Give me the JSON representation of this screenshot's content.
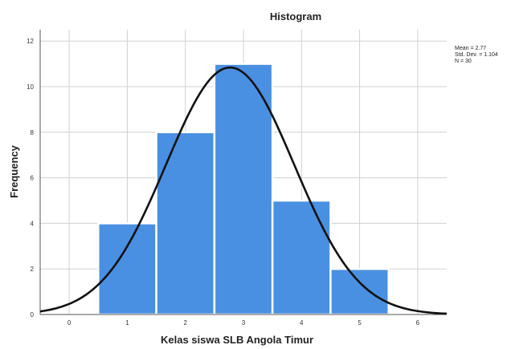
{
  "chart_data": {
    "type": "bar",
    "title": "Histogram",
    "xlabel": "Kelas siswa SLB Angola Timur",
    "ylabel": "Frequency",
    "xlim": [
      -0.5,
      6.5
    ],
    "ylim": [
      0,
      12.5
    ],
    "x_ticks": [
      0,
      1,
      2,
      3,
      4,
      5,
      6
    ],
    "y_ticks": [
      0,
      2,
      4,
      6,
      8,
      10,
      12
    ],
    "bin_width": 1,
    "categories": [
      "1",
      "2",
      "3",
      "4",
      "5"
    ],
    "values": [
      4,
      8,
      11,
      5,
      2
    ],
    "grid": true,
    "normal_curve": {
      "mean": 2.77,
      "std_dev": 1.104,
      "n": 30
    },
    "stats": {
      "mean": "Mean = 2.77",
      "std_dev": "Std. Dev. = 1.104",
      "n": "N = 30"
    },
    "colors": {
      "bar": "#4a90e2",
      "curve": "#111111",
      "grid": "#d0d0d0"
    }
  }
}
